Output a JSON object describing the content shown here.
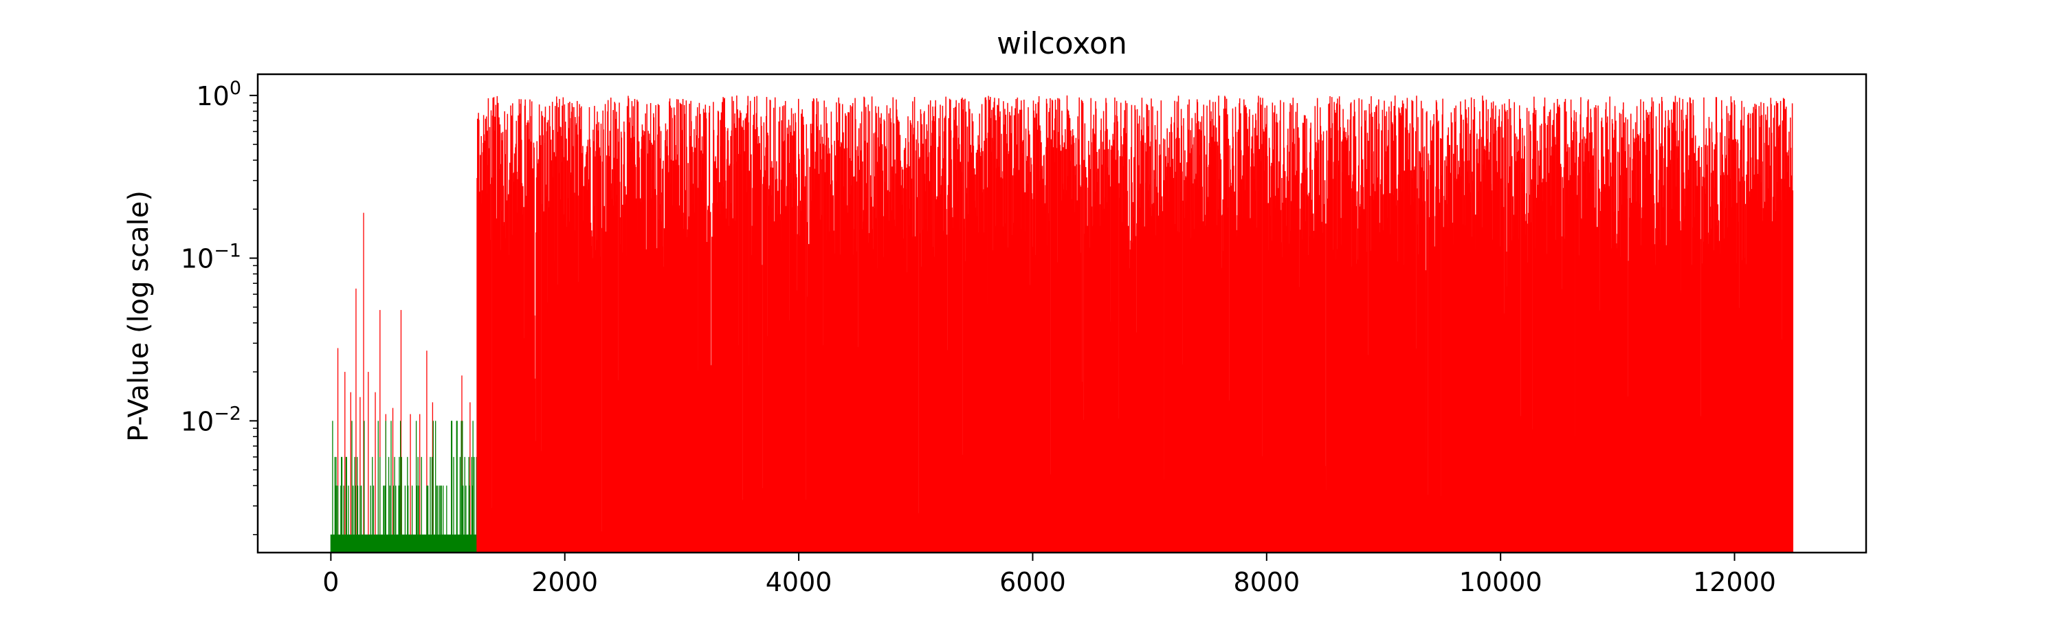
{
  "chart_data": {
    "type": "bar",
    "title": "wilcoxon",
    "xlabel": "",
    "ylabel": "P-Value (log scale)",
    "yscale": "log",
    "xlim": [
      -625,
      13125
    ],
    "ylim": [
      0.00155,
      1.35
    ],
    "x_ticks": [
      0,
      2000,
      4000,
      6000,
      8000,
      10000,
      12000
    ],
    "x_tick_labels": [
      "0",
      "2000",
      "4000",
      "6000",
      "8000",
      "10000",
      "12000"
    ],
    "y_ticks": [
      0.01,
      0.1,
      1
    ],
    "y_tick_labels": [
      {
        "base": "10",
        "exp": "−2"
      },
      {
        "base": "10",
        "exp": "−1"
      },
      {
        "base": "10",
        "exp": "0"
      }
    ],
    "grid": false,
    "legend": "none",
    "colors": {
      "significant": "#008000",
      "not_significant": "#ff0000"
    },
    "series": [
      {
        "color_key": "significant",
        "x_range": [
          0,
          1250
        ],
        "base_value": 0.002,
        "upper_values": [
          0.004,
          0.006,
          0.01
        ],
        "note_values": "dense bars mostly at 0.002, some at 0.004, 0.006 and 0.01"
      },
      {
        "color_key": "not_significant",
        "x_range": [
          0,
          1250
        ],
        "spikes": [
          {
            "x": 60,
            "y": 0.028
          },
          {
            "x": 120,
            "y": 0.02
          },
          {
            "x": 170,
            "y": 0.015
          },
          {
            "x": 215,
            "y": 0.065
          },
          {
            "x": 250,
            "y": 0.014
          },
          {
            "x": 280,
            "y": 0.19
          },
          {
            "x": 320,
            "y": 0.02
          },
          {
            "x": 380,
            "y": 0.015
          },
          {
            "x": 420,
            "y": 0.048
          },
          {
            "x": 470,
            "y": 0.011
          },
          {
            "x": 530,
            "y": 0.012
          },
          {
            "x": 600,
            "y": 0.048
          },
          {
            "x": 680,
            "y": 0.011
          },
          {
            "x": 760,
            "y": 0.011
          },
          {
            "x": 820,
            "y": 0.027
          },
          {
            "x": 870,
            "y": 0.013
          },
          {
            "x": 1120,
            "y": 0.019
          },
          {
            "x": 1190,
            "y": 0.013
          }
        ]
      },
      {
        "color_key": "not_significant",
        "x_range": [
          1250,
          12500
        ],
        "y_range": [
          0.002,
          1.0
        ],
        "note_values": "dense bars across the range, mostly between 0.1 and 1.0"
      }
    ]
  }
}
